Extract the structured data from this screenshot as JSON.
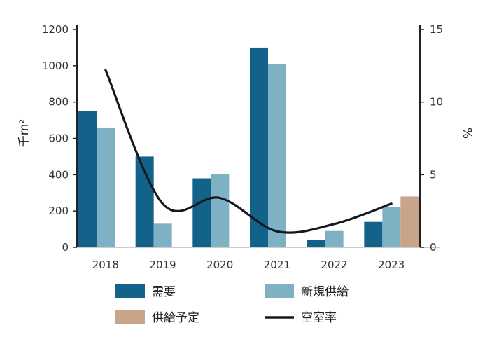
{
  "chart_data": {
    "type": "bar",
    "categories": [
      "2018",
      "2019",
      "2020",
      "2021",
      "2022",
      "2023"
    ],
    "series": [
      {
        "name": "需要",
        "type": "bar",
        "axis": "left",
        "color": "#12628a",
        "values": [
          750,
          500,
          380,
          1100,
          40,
          140
        ]
      },
      {
        "name": "新規供給",
        "type": "bar",
        "axis": "left",
        "color": "#7fb1c4",
        "values": [
          660,
          130,
          405,
          1010,
          90,
          220
        ]
      },
      {
        "name": "供給予定",
        "type": "bar",
        "axis": "left",
        "color": "#c8a48b",
        "values": [
          null,
          null,
          null,
          null,
          null,
          280
        ]
      },
      {
        "name": "空室率",
        "type": "line",
        "axis": "right",
        "color": "#15191f",
        "values": [
          12.2,
          3.0,
          3.4,
          1.1,
          1.6,
          3.0
        ]
      }
    ],
    "y_left": {
      "label": "千m²",
      "ylim": [
        0,
        1200
      ],
      "ticks": [
        0,
        200,
        400,
        600,
        800,
        1000,
        1200
      ]
    },
    "y_right": {
      "label": "%",
      "ylim": [
        0,
        15
      ],
      "ticks": [
        0,
        5,
        10,
        15
      ]
    },
    "legend": {
      "placement": "bottom",
      "items": [
        "需要",
        "新規供給",
        "供給予定",
        "空室率"
      ]
    },
    "grid": false
  }
}
